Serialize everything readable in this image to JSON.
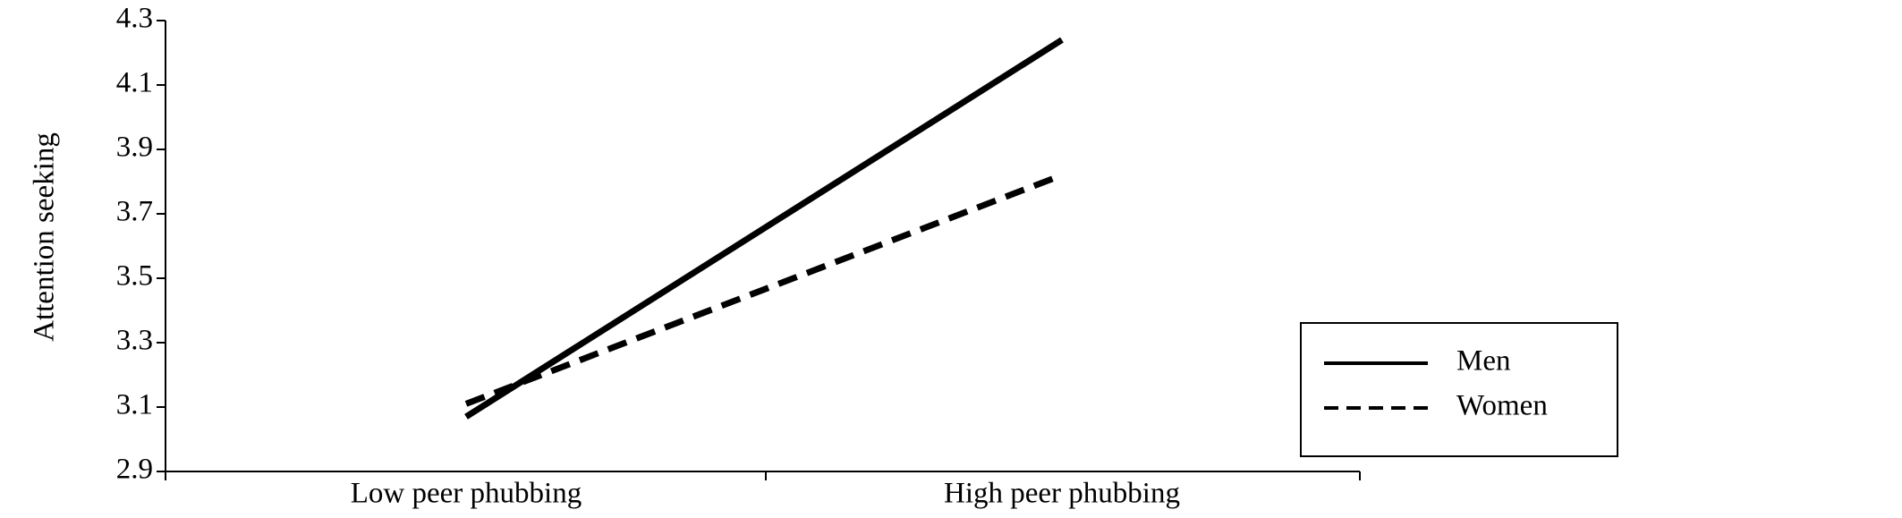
{
  "chart_data": {
    "type": "line",
    "y_label": "Attention seeking",
    "categories": [
      "Low peer phubbing",
      "High peer phubbing"
    ],
    "series": [
      {
        "name": "Men",
        "color": "#000000",
        "line_style": "solid",
        "values": [
          3.07,
          4.24
        ]
      },
      {
        "name": "Women",
        "color": "#000000",
        "line_style": "dashed",
        "values": [
          3.11,
          3.82
        ]
      }
    ],
    "ylim": [
      2.9,
      4.3
    ],
    "yticks": [
      2.9,
      3.1,
      3.3,
      3.5,
      3.7,
      3.9,
      4.1,
      4.3
    ],
    "grid": false,
    "legend": "lower right"
  }
}
